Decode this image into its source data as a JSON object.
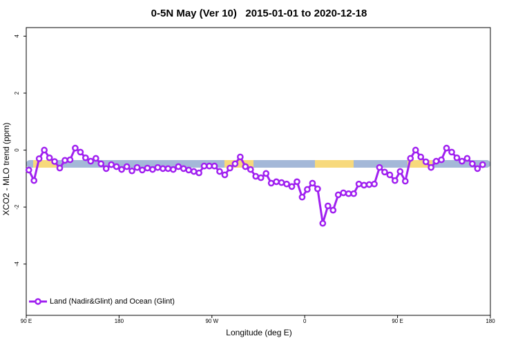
{
  "chart_data": {
    "type": "line",
    "title": "0-5N May (Ver 10)   2015-01-01 to 2020-12-18",
    "x_label": "Longitude (deg E)",
    "y_label": "XCO2 - MLO trend (ppm)",
    "x": [
      92.5,
      97.5,
      102.5,
      107.5,
      112.5,
      117.5,
      122.5,
      127.5,
      132.5,
      137.5,
      142.5,
      147.5,
      152.5,
      157.5,
      162.5,
      167.5,
      172.5,
      177.5,
      182.5,
      187.5,
      192.5,
      197.5,
      202.5,
      207.5,
      212.5,
      217.5,
      222.5,
      227.5,
      232.5,
      237.5,
      242.5,
      247.5,
      252.5,
      257.5,
      262.5,
      267.5,
      272.5,
      277.5,
      282.5,
      287.5,
      292.5,
      297.5,
      302.5,
      307.5,
      312.5,
      317.5,
      322.5,
      327.5,
      332.5,
      337.5,
      342.5,
      347.5,
      352.5,
      357.5,
      362.5,
      367.5,
      372.5,
      377.5,
      382.5,
      387.5,
      392.5,
      397.5,
      402.5,
      407.5,
      412.5,
      417.5,
      422.5,
      427.5,
      432.5,
      437.5,
      442.5,
      447.5,
      452.5,
      457.5,
      462.5,
      467.5,
      472.5,
      477.5,
      482.5,
      487.5,
      492.5,
      497.5,
      502.5,
      507.5,
      512.5,
      517.5,
      522.5,
      527.5,
      532.5
    ],
    "series": [
      {
        "name": "Land (Nadir&Glint) and Ocean (Glint)",
        "color": "#a020f0",
        "values": [
          -0.7,
          -1.07,
          -0.3,
          0,
          -0.27,
          -0.4,
          -0.63,
          -0.36,
          -0.34,
          0.07,
          -0.07,
          -0.27,
          -0.39,
          -0.29,
          -0.48,
          -0.65,
          -0.51,
          -0.58,
          -0.68,
          -0.58,
          -0.73,
          -0.61,
          -0.7,
          -0.63,
          -0.68,
          -0.61,
          -0.65,
          -0.65,
          -0.68,
          -0.58,
          -0.65,
          -0.7,
          -0.75,
          -0.8,
          -0.56,
          -0.56,
          -0.56,
          -0.75,
          -0.87,
          -0.63,
          -0.48,
          -0.24,
          -0.58,
          -0.68,
          -0.92,
          -0.97,
          -0.82,
          -1.16,
          -1.11,
          -1.14,
          -1.19,
          -1.28,
          -1.11,
          -1.65,
          -1.38,
          -1.16,
          -1.36,
          -2.57,
          -1.96,
          -2.11,
          -1.57,
          -1.5,
          -1.53,
          -1.53,
          -1.19,
          -1.23,
          -1.21,
          -1.19,
          -0.61,
          -0.77,
          -0.87,
          -1.07,
          -0.75,
          -1.09,
          -0.29,
          0,
          -0.24,
          -0.41,
          -0.61,
          -0.39,
          -0.34,
          0.07,
          -0.07,
          -0.27,
          -0.39,
          -0.29,
          -0.48,
          -0.65,
          -0.51
        ]
      }
    ],
    "xlim": [
      90,
      540
    ],
    "xticks": [
      {
        "value": 90,
        "label": "90 E"
      },
      {
        "value": 180,
        "label": "180"
      },
      {
        "value": 270,
        "label": "90 W"
      },
      {
        "value": 360,
        "label": "0"
      },
      {
        "value": 450,
        "label": "90 E"
      },
      {
        "value": 540,
        "label": "180"
      }
    ],
    "ylim": [
      -5.8,
      4.3
    ],
    "yticks": [
      -4,
      -2,
      0,
      2,
      4
    ],
    "legend": "lower left"
  }
}
